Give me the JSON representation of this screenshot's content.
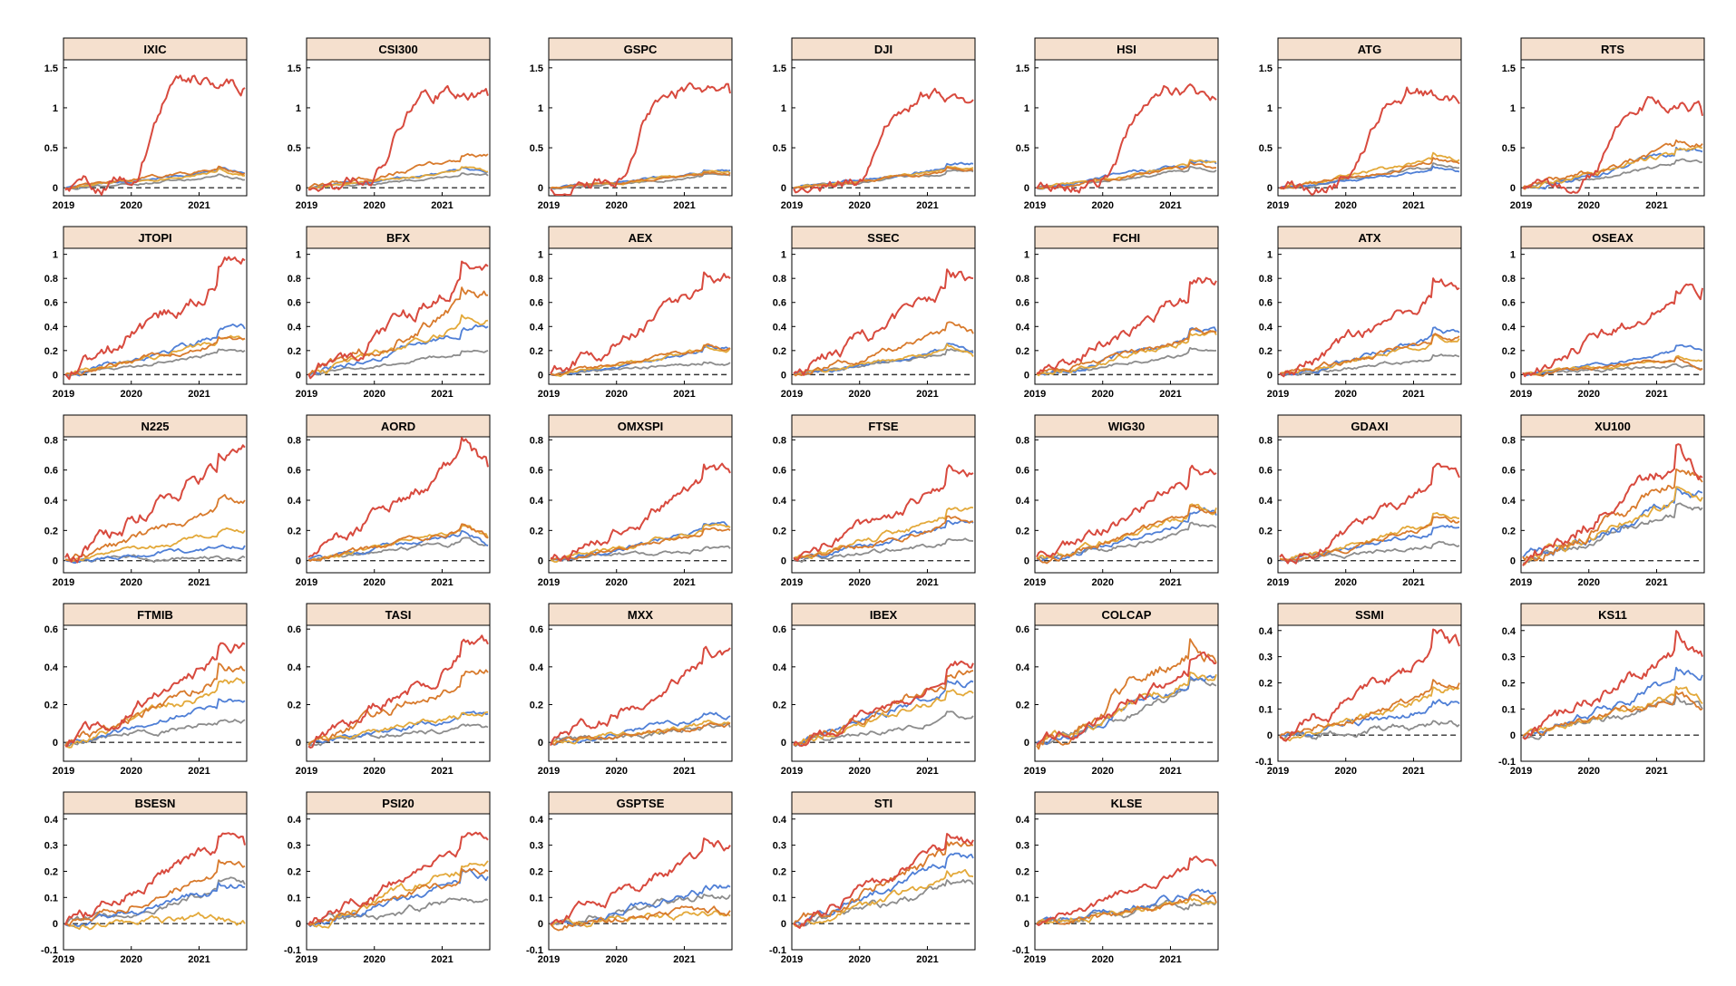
{
  "colors": {
    "header_bg": "#f5e0ce",
    "series": [
      "#4f7fd6",
      "#d87a2c",
      "#e3a93a",
      "#8c8c8c",
      "#d84a3e"
    ],
    "baseline": "#333333"
  },
  "panels": [
    {
      "title": "IXIC",
      "ylim": [
        -0.1,
        1.6
      ],
      "yticks": [
        "0",
        "0.5",
        "1",
        "1.5"
      ],
      "ytick_values": [
        0,
        0.5,
        1,
        1.5
      ],
      "xticks": [
        "2019",
        "2020",
        "2021"
      ],
      "final": [
        0.18,
        0.18,
        0.15,
        0.1,
        1.25
      ],
      "peak": [
        0.25,
        0.28,
        0.25,
        0.15,
        1.38
      ]
    },
    {
      "title": "CSI300",
      "ylim": [
        -0.1,
        1.6
      ],
      "yticks": [
        "0",
        "0.5",
        "1",
        "1.5"
      ],
      "ytick_values": [
        0,
        0.5,
        1,
        1.5
      ],
      "xticks": [
        "2019",
        "2020",
        "2021"
      ],
      "final": [
        0.2,
        0.42,
        0.2,
        0.15,
        1.15
      ],
      "peak": [
        0.25,
        0.42,
        0.25,
        0.18,
        1.22
      ]
    },
    {
      "title": "GSPC",
      "ylim": [
        -0.1,
        1.6
      ],
      "yticks": [
        "0",
        "0.5",
        "1",
        "1.5"
      ],
      "ytick_values": [
        0,
        0.5,
        1,
        1.5
      ],
      "xticks": [
        "2019",
        "2020",
        "2021"
      ],
      "final": [
        0.22,
        0.18,
        0.18,
        0.15,
        1.18
      ],
      "peak": [
        0.22,
        0.2,
        0.2,
        0.16,
        1.22
      ]
    },
    {
      "title": "DJI",
      "ylim": [
        -0.1,
        1.6
      ],
      "yticks": [
        "0",
        "0.5",
        "1",
        "1.5"
      ],
      "ytick_values": [
        0,
        0.5,
        1,
        1.5
      ],
      "xticks": [
        "2019",
        "2020",
        "2021"
      ],
      "final": [
        0.3,
        0.22,
        0.25,
        0.2,
        1.1
      ],
      "peak": [
        0.3,
        0.24,
        0.26,
        0.21,
        1.15
      ]
    },
    {
      "title": "HSI",
      "ylim": [
        -0.1,
        1.6
      ],
      "yticks": [
        "0",
        "0.5",
        "1",
        "1.5"
      ],
      "ytick_values": [
        0,
        0.5,
        1,
        1.5
      ],
      "xticks": [
        "2019",
        "2020",
        "2021"
      ],
      "final": [
        0.3,
        0.25,
        0.32,
        0.22,
        1.1
      ],
      "peak": [
        0.35,
        0.3,
        0.35,
        0.26,
        1.15
      ]
    },
    {
      "title": "ATG",
      "ylim": [
        -0.1,
        1.6
      ],
      "yticks": [
        "0",
        "0.5",
        "1",
        "1.5"
      ],
      "ytick_values": [
        0,
        0.5,
        1,
        1.5
      ],
      "xticks": [
        "2019",
        "2020",
        "2021"
      ],
      "final": [
        0.2,
        0.3,
        0.35,
        0.25,
        1.05
      ],
      "peak": [
        0.25,
        0.35,
        0.4,
        0.3,
        1.2
      ]
    },
    {
      "title": "RTS",
      "ylim": [
        -0.1,
        1.6
      ],
      "yticks": [
        "0",
        "0.5",
        "1",
        "1.5"
      ],
      "ytick_values": [
        0,
        0.5,
        1,
        1.5
      ],
      "xticks": [
        "2019",
        "2020",
        "2021"
      ],
      "final": [
        0.45,
        0.55,
        0.5,
        0.32,
        0.9
      ],
      "peak": [
        0.48,
        0.57,
        0.52,
        0.35,
        1.15
      ]
    },
    {
      "title": "JTOPI",
      "ylim": [
        -0.08,
        1.05
      ],
      "yticks": [
        "0",
        "0.2",
        "0.4",
        "0.6",
        "0.8",
        "1"
      ],
      "ytick_values": [
        0,
        0.2,
        0.4,
        0.6,
        0.8,
        1
      ],
      "xticks": [
        "2019",
        "2020",
        "2021"
      ],
      "final": [
        0.38,
        0.3,
        0.3,
        0.2,
        0.95
      ],
      "peak": [
        0.4,
        0.32,
        0.32,
        0.21,
        0.96
      ]
    },
    {
      "title": "BFX",
      "ylim": [
        -0.08,
        1.05
      ],
      "yticks": [
        "0",
        "0.2",
        "0.4",
        "0.6",
        "0.8",
        "1"
      ],
      "ytick_values": [
        0,
        0.2,
        0.4,
        0.6,
        0.8,
        1
      ],
      "xticks": [
        "2019",
        "2020",
        "2021"
      ],
      "final": [
        0.4,
        0.66,
        0.45,
        0.2,
        0.9
      ],
      "peak": [
        0.42,
        0.7,
        0.47,
        0.21,
        0.92
      ]
    },
    {
      "title": "AEX",
      "ylim": [
        -0.08,
        1.05
      ],
      "yticks": [
        "0",
        "0.2",
        "0.4",
        "0.6",
        "0.8",
        "1"
      ],
      "ytick_values": [
        0,
        0.2,
        0.4,
        0.6,
        0.8,
        1
      ],
      "xticks": [
        "2019",
        "2020",
        "2021"
      ],
      "final": [
        0.22,
        0.22,
        0.22,
        0.1,
        0.8
      ],
      "peak": [
        0.23,
        0.24,
        0.24,
        0.12,
        0.82
      ]
    },
    {
      "title": "SSEC",
      "ylim": [
        -0.08,
        1.05
      ],
      "yticks": [
        "0",
        "0.2",
        "0.4",
        "0.6",
        "0.8",
        "1"
      ],
      "ytick_values": [
        0,
        0.2,
        0.4,
        0.6,
        0.8,
        1
      ],
      "xticks": [
        "2019",
        "2020",
        "2021"
      ],
      "final": [
        0.18,
        0.34,
        0.15,
        0.2,
        0.8
      ],
      "peak": [
        0.25,
        0.4,
        0.25,
        0.22,
        0.85
      ]
    },
    {
      "title": "FCHI",
      "ylim": [
        -0.08,
        1.05
      ],
      "yticks": [
        "0",
        "0.2",
        "0.4",
        "0.6",
        "0.8",
        "1"
      ],
      "ytick_values": [
        0,
        0.2,
        0.4,
        0.6,
        0.8,
        1
      ],
      "xticks": [
        "2019",
        "2020",
        "2021"
      ],
      "final": [
        0.36,
        0.35,
        0.33,
        0.2,
        0.78
      ],
      "peak": [
        0.37,
        0.37,
        0.35,
        0.21,
        0.8
      ]
    },
    {
      "title": "ATX",
      "ylim": [
        -0.08,
        1.05
      ],
      "yticks": [
        "0",
        "0.2",
        "0.4",
        "0.6",
        "0.8",
        "1"
      ],
      "ytick_values": [
        0,
        0.2,
        0.4,
        0.6,
        0.8,
        1
      ],
      "xticks": [
        "2019",
        "2020",
        "2021"
      ],
      "final": [
        0.35,
        0.32,
        0.3,
        0.15,
        0.72
      ],
      "peak": [
        0.36,
        0.34,
        0.32,
        0.16,
        0.76
      ]
    },
    {
      "title": "OSEAX",
      "ylim": [
        -0.08,
        1.05
      ],
      "yticks": [
        "0",
        "0.2",
        "0.4",
        "0.6",
        "0.8",
        "1"
      ],
      "ytick_values": [
        0,
        0.2,
        0.4,
        0.6,
        0.8,
        1
      ],
      "xticks": [
        "2019",
        "2020",
        "2021"
      ],
      "final": [
        0.2,
        0.05,
        0.12,
        0.05,
        0.72
      ],
      "peak": [
        0.22,
        0.15,
        0.15,
        0.08,
        0.75
      ]
    },
    {
      "title": "N225",
      "ylim": [
        -0.08,
        0.82
      ],
      "yticks": [
        "0",
        "0.2",
        "0.4",
        "0.6",
        "0.8"
      ],
      "ytick_values": [
        0,
        0.2,
        0.4,
        0.6,
        0.8
      ],
      "xticks": [
        "2019",
        "2020",
        "2021"
      ],
      "final": [
        0.1,
        0.4,
        0.2,
        0.02,
        0.75
      ],
      "peak": [
        0.1,
        0.4,
        0.2,
        0.03,
        0.78
      ]
    },
    {
      "title": "AORD",
      "ylim": [
        -0.08,
        0.82
      ],
      "yticks": [
        "0",
        "0.2",
        "0.4",
        "0.6",
        "0.8"
      ],
      "ytick_values": [
        0,
        0.2,
        0.4,
        0.6,
        0.8
      ],
      "xticks": [
        "2019",
        "2020",
        "2021"
      ],
      "final": [
        0.1,
        0.15,
        0.15,
        0.1,
        0.62
      ],
      "peak": [
        0.22,
        0.25,
        0.24,
        0.15,
        0.78
      ]
    },
    {
      "title": "OMXSPI",
      "ylim": [
        -0.08,
        0.82
      ],
      "yticks": [
        "0",
        "0.2",
        "0.4",
        "0.6",
        "0.8"
      ],
      "ytick_values": [
        0,
        0.2,
        0.4,
        0.6,
        0.8
      ],
      "xticks": [
        "2019",
        "2020",
        "2021"
      ],
      "final": [
        0.22,
        0.2,
        0.22,
        0.08,
        0.58
      ],
      "peak": [
        0.24,
        0.22,
        0.24,
        0.09,
        0.6
      ]
    },
    {
      "title": "FTSE",
      "ylim": [
        -0.08,
        0.82
      ],
      "yticks": [
        "0",
        "0.2",
        "0.4",
        "0.6",
        "0.8"
      ],
      "ytick_values": [
        0,
        0.2,
        0.4,
        0.6,
        0.8
      ],
      "xticks": [
        "2019",
        "2020",
        "2021"
      ],
      "final": [
        0.25,
        0.26,
        0.35,
        0.13,
        0.58
      ],
      "peak": [
        0.27,
        0.28,
        0.35,
        0.14,
        0.6
      ]
    },
    {
      "title": "WIG30",
      "ylim": [
        -0.08,
        0.82
      ],
      "yticks": [
        "0",
        "0.2",
        "0.4",
        "0.6",
        "0.8"
      ],
      "ytick_values": [
        0,
        0.2,
        0.4,
        0.6,
        0.8
      ],
      "xticks": [
        "2019",
        "2020",
        "2021"
      ],
      "final": [
        0.3,
        0.32,
        0.35,
        0.22,
        0.58
      ],
      "peak": [
        0.32,
        0.35,
        0.37,
        0.24,
        0.6
      ]
    },
    {
      "title": "GDAXI",
      "ylim": [
        -0.08,
        0.82
      ],
      "yticks": [
        "0",
        "0.2",
        "0.4",
        "0.6",
        "0.8"
      ],
      "ytick_values": [
        0,
        0.2,
        0.4,
        0.6,
        0.8
      ],
      "xticks": [
        "2019",
        "2020",
        "2021"
      ],
      "final": [
        0.22,
        0.26,
        0.28,
        0.1,
        0.55
      ],
      "peak": [
        0.23,
        0.28,
        0.3,
        0.11,
        0.57
      ]
    },
    {
      "title": "XU100",
      "ylim": [
        -0.08,
        0.82
      ],
      "yticks": [
        "0",
        "0.2",
        "0.4",
        "0.6",
        "0.8"
      ],
      "ytick_values": [
        0,
        0.2,
        0.4,
        0.6,
        0.8
      ],
      "xticks": [
        "2019",
        "2020",
        "2021"
      ],
      "final": [
        0.45,
        0.52,
        0.42,
        0.35,
        0.55
      ],
      "peak": [
        0.48,
        0.6,
        0.45,
        0.38,
        0.75
      ]
    },
    {
      "title": "FTMIB",
      "ylim": [
        -0.1,
        0.62
      ],
      "yticks": [
        "0",
        "0.2",
        "0.4",
        "0.6"
      ],
      "ytick_values": [
        0,
        0.2,
        0.4,
        0.6
      ],
      "xticks": [
        "2019",
        "2020",
        "2021"
      ],
      "final": [
        0.22,
        0.38,
        0.32,
        0.12,
        0.52
      ],
      "peak": [
        0.23,
        0.4,
        0.34,
        0.13,
        0.52
      ]
    },
    {
      "title": "TASI",
      "ylim": [
        -0.1,
        0.62
      ],
      "yticks": [
        "0",
        "0.2",
        "0.4",
        "0.6"
      ],
      "ytick_values": [
        0,
        0.2,
        0.4,
        0.6
      ],
      "xticks": [
        "2019",
        "2020",
        "2021"
      ],
      "final": [
        0.15,
        0.37,
        0.16,
        0.08,
        0.52
      ],
      "peak": [
        0.16,
        0.4,
        0.17,
        0.09,
        0.54
      ]
    },
    {
      "title": "MXX",
      "ylim": [
        -0.1,
        0.62
      ],
      "yticks": [
        "0",
        "0.2",
        "0.4",
        "0.6"
      ],
      "ytick_values": [
        0,
        0.2,
        0.4,
        0.6
      ],
      "xticks": [
        "2019",
        "2020",
        "2021"
      ],
      "final": [
        0.14,
        0.1,
        0.1,
        0.08,
        0.5
      ],
      "peak": [
        0.15,
        0.11,
        0.11,
        0.09,
        0.5
      ]
    },
    {
      "title": "IBEX",
      "ylim": [
        -0.1,
        0.62
      ],
      "yticks": [
        "0",
        "0.2",
        "0.4",
        "0.6"
      ],
      "ytick_values": [
        0,
        0.2,
        0.4,
        0.6
      ],
      "xticks": [
        "2019",
        "2020",
        "2021"
      ],
      "final": [
        0.32,
        0.38,
        0.26,
        0.14,
        0.42
      ],
      "peak": [
        0.34,
        0.4,
        0.28,
        0.15,
        0.42
      ]
    },
    {
      "title": "COLCAP",
      "ylim": [
        -0.1,
        0.62
      ],
      "yticks": [
        "0",
        "0.2",
        "0.4",
        "0.6"
      ],
      "ytick_values": [
        0,
        0.2,
        0.4,
        0.6
      ],
      "xticks": [
        "2019",
        "2020",
        "2021"
      ],
      "final": [
        0.35,
        0.42,
        0.36,
        0.3,
        0.42
      ],
      "peak": [
        0.36,
        0.6,
        0.38,
        0.31,
        0.45
      ]
    },
    {
      "title": "SSMI",
      "ylim": [
        -0.1,
        0.42
      ],
      "yticks": [
        "-0.1",
        "0",
        "0.1",
        "0.2",
        "0.3",
        "0.4"
      ],
      "ytick_values": [
        -0.1,
        0,
        0.1,
        0.2,
        0.3,
        0.4
      ],
      "xticks": [
        "2019",
        "2020",
        "2021"
      ],
      "final": [
        0.12,
        0.2,
        0.18,
        0.04,
        0.34
      ],
      "peak": [
        0.12,
        0.2,
        0.18,
        0.05,
        0.38
      ]
    },
    {
      "title": "KS11",
      "ylim": [
        -0.1,
        0.42
      ],
      "yticks": [
        "-0.1",
        "0",
        "0.1",
        "0.2",
        "0.3",
        "0.4"
      ],
      "ytick_values": [
        -0.1,
        0,
        0.1,
        0.2,
        0.3,
        0.4
      ],
      "xticks": [
        "2019",
        "2020",
        "2021"
      ],
      "final": [
        0.23,
        0.1,
        0.12,
        0.1,
        0.3
      ],
      "peak": [
        0.25,
        0.18,
        0.18,
        0.14,
        0.38
      ]
    },
    {
      "title": "BSESN",
      "ylim": [
        -0.1,
        0.42
      ],
      "yticks": [
        "-0.1",
        "0",
        "0.1",
        "0.2",
        "0.3",
        "0.4"
      ],
      "ytick_values": [
        -0.1,
        0,
        0.1,
        0.2,
        0.3,
        0.4
      ],
      "xticks": [
        "2019",
        "2020",
        "2021"
      ],
      "final": [
        0.14,
        0.22,
        0.0,
        0.15,
        0.3
      ],
      "peak": [
        0.15,
        0.23,
        0.02,
        0.15,
        0.36
      ]
    },
    {
      "title": "PSI20",
      "ylim": [
        -0.1,
        0.42
      ],
      "yticks": [
        "-0.1",
        "0",
        "0.1",
        "0.2",
        "0.3",
        "0.4"
      ],
      "ytick_values": [
        -0.1,
        0,
        0.1,
        0.2,
        0.3,
        0.4
      ],
      "xticks": [
        "2019",
        "2020",
        "2021"
      ],
      "final": [
        0.18,
        0.2,
        0.24,
        0.09,
        0.32
      ],
      "peak": [
        0.19,
        0.21,
        0.25,
        0.1,
        0.34
      ]
    },
    {
      "title": "GSPTSE",
      "ylim": [
        -0.1,
        0.42
      ],
      "yticks": [
        "-0.1",
        "0",
        "0.1",
        "0.2",
        "0.3",
        "0.4"
      ],
      "ytick_values": [
        -0.1,
        0,
        0.1,
        0.2,
        0.3,
        0.4
      ],
      "xticks": [
        "2019",
        "2020",
        "2021"
      ],
      "final": [
        0.14,
        0.05,
        0.03,
        0.11,
        0.3
      ],
      "peak": [
        0.15,
        0.06,
        0.04,
        0.12,
        0.33
      ]
    },
    {
      "title": "STI",
      "ylim": [
        -0.1,
        0.42
      ],
      "yticks": [
        "-0.1",
        "0",
        "0.1",
        "0.2",
        "0.3",
        "0.4"
      ],
      "ytick_values": [
        -0.1,
        0,
        0.1,
        0.2,
        0.3,
        0.4
      ],
      "xticks": [
        "2019",
        "2020",
        "2021"
      ],
      "final": [
        0.25,
        0.3,
        0.18,
        0.15,
        0.32
      ],
      "peak": [
        0.26,
        0.32,
        0.19,
        0.16,
        0.35
      ]
    },
    {
      "title": "KLSE",
      "ylim": [
        -0.1,
        0.42
      ],
      "yticks": [
        "-0.1",
        "0",
        "0.1",
        "0.2",
        "0.3",
        "0.4"
      ],
      "ytick_values": [
        -0.1,
        0,
        0.1,
        0.2,
        0.3,
        0.4
      ],
      "xticks": [
        "2019",
        "2020",
        "2021"
      ],
      "final": [
        0.12,
        0.08,
        0.08,
        0.08,
        0.22
      ],
      "peak": [
        0.13,
        0.1,
        0.1,
        0.09,
        0.25
      ]
    }
  ],
  "chart_data": {
    "type": "line",
    "layout": "small multiples, 7 columns x 5 rows",
    "x_range": [
      "2019",
      "2021"
    ],
    "baseline": 0,
    "series_colors": [
      "#4f7fd6",
      "#d87a2c",
      "#e3a93a",
      "#8c8c8c",
      "#d84a3e"
    ]
  }
}
